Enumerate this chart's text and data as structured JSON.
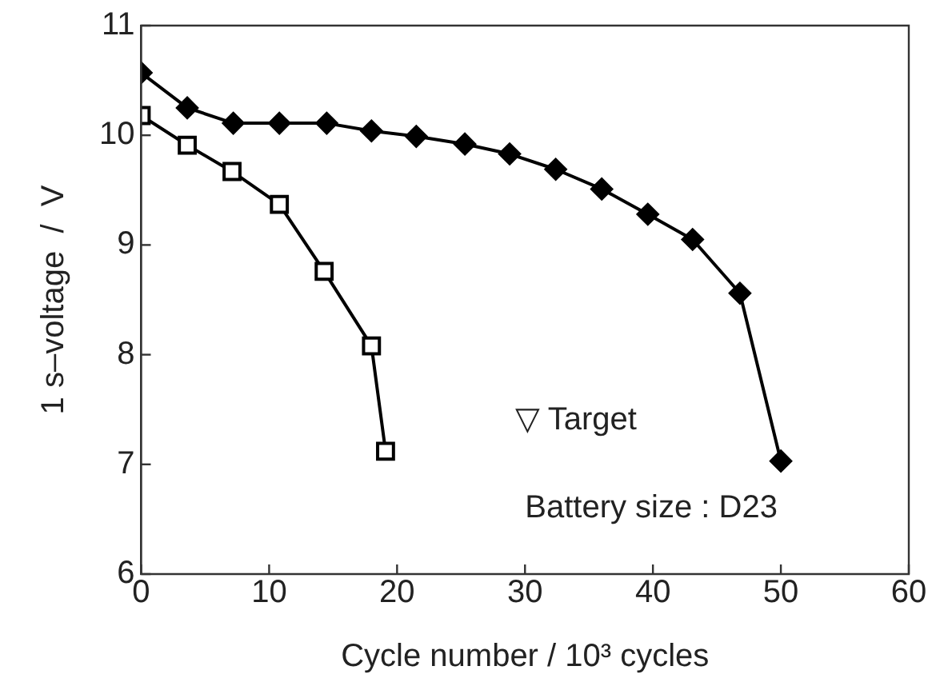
{
  "chart_data": {
    "type": "line",
    "xlabel": "Cycle number / 10³ cycles",
    "ylabel": "1 s–voltage  /  V",
    "xlim": [
      0,
      60
    ],
    "xticks": [
      0,
      10,
      20,
      30,
      40,
      50,
      60
    ],
    "ylim": [
      6,
      11
    ],
    "yticks": [
      6,
      7,
      8,
      9,
      10,
      11
    ],
    "grid": false,
    "legend": false,
    "line_style": "solid",
    "series": [
      {
        "color": "#000000",
        "marker": "diamond",
        "x": [
          0,
          3.6,
          7.2,
          10.8,
          14.5,
          18.0,
          21.5,
          25.3,
          28.8,
          32.4,
          36.0,
          39.6,
          43.1,
          46.8,
          50.0
        ],
        "values": [
          10.57,
          10.25,
          10.11,
          10.11,
          10.11,
          10.04,
          9.99,
          9.92,
          9.83,
          9.69,
          9.51,
          9.28,
          9.05,
          8.56,
          7.03
        ]
      },
      {
        "color": "#000000",
        "marker": "square",
        "x": [
          0,
          3.6,
          7.1,
          10.8,
          14.3,
          18.0,
          19.1
        ],
        "values": [
          10.18,
          9.91,
          9.67,
          9.37,
          8.76,
          8.08,
          7.12
        ]
      }
    ],
    "annotations": [
      "▽ Target",
      "Battery size : D23"
    ]
  }
}
